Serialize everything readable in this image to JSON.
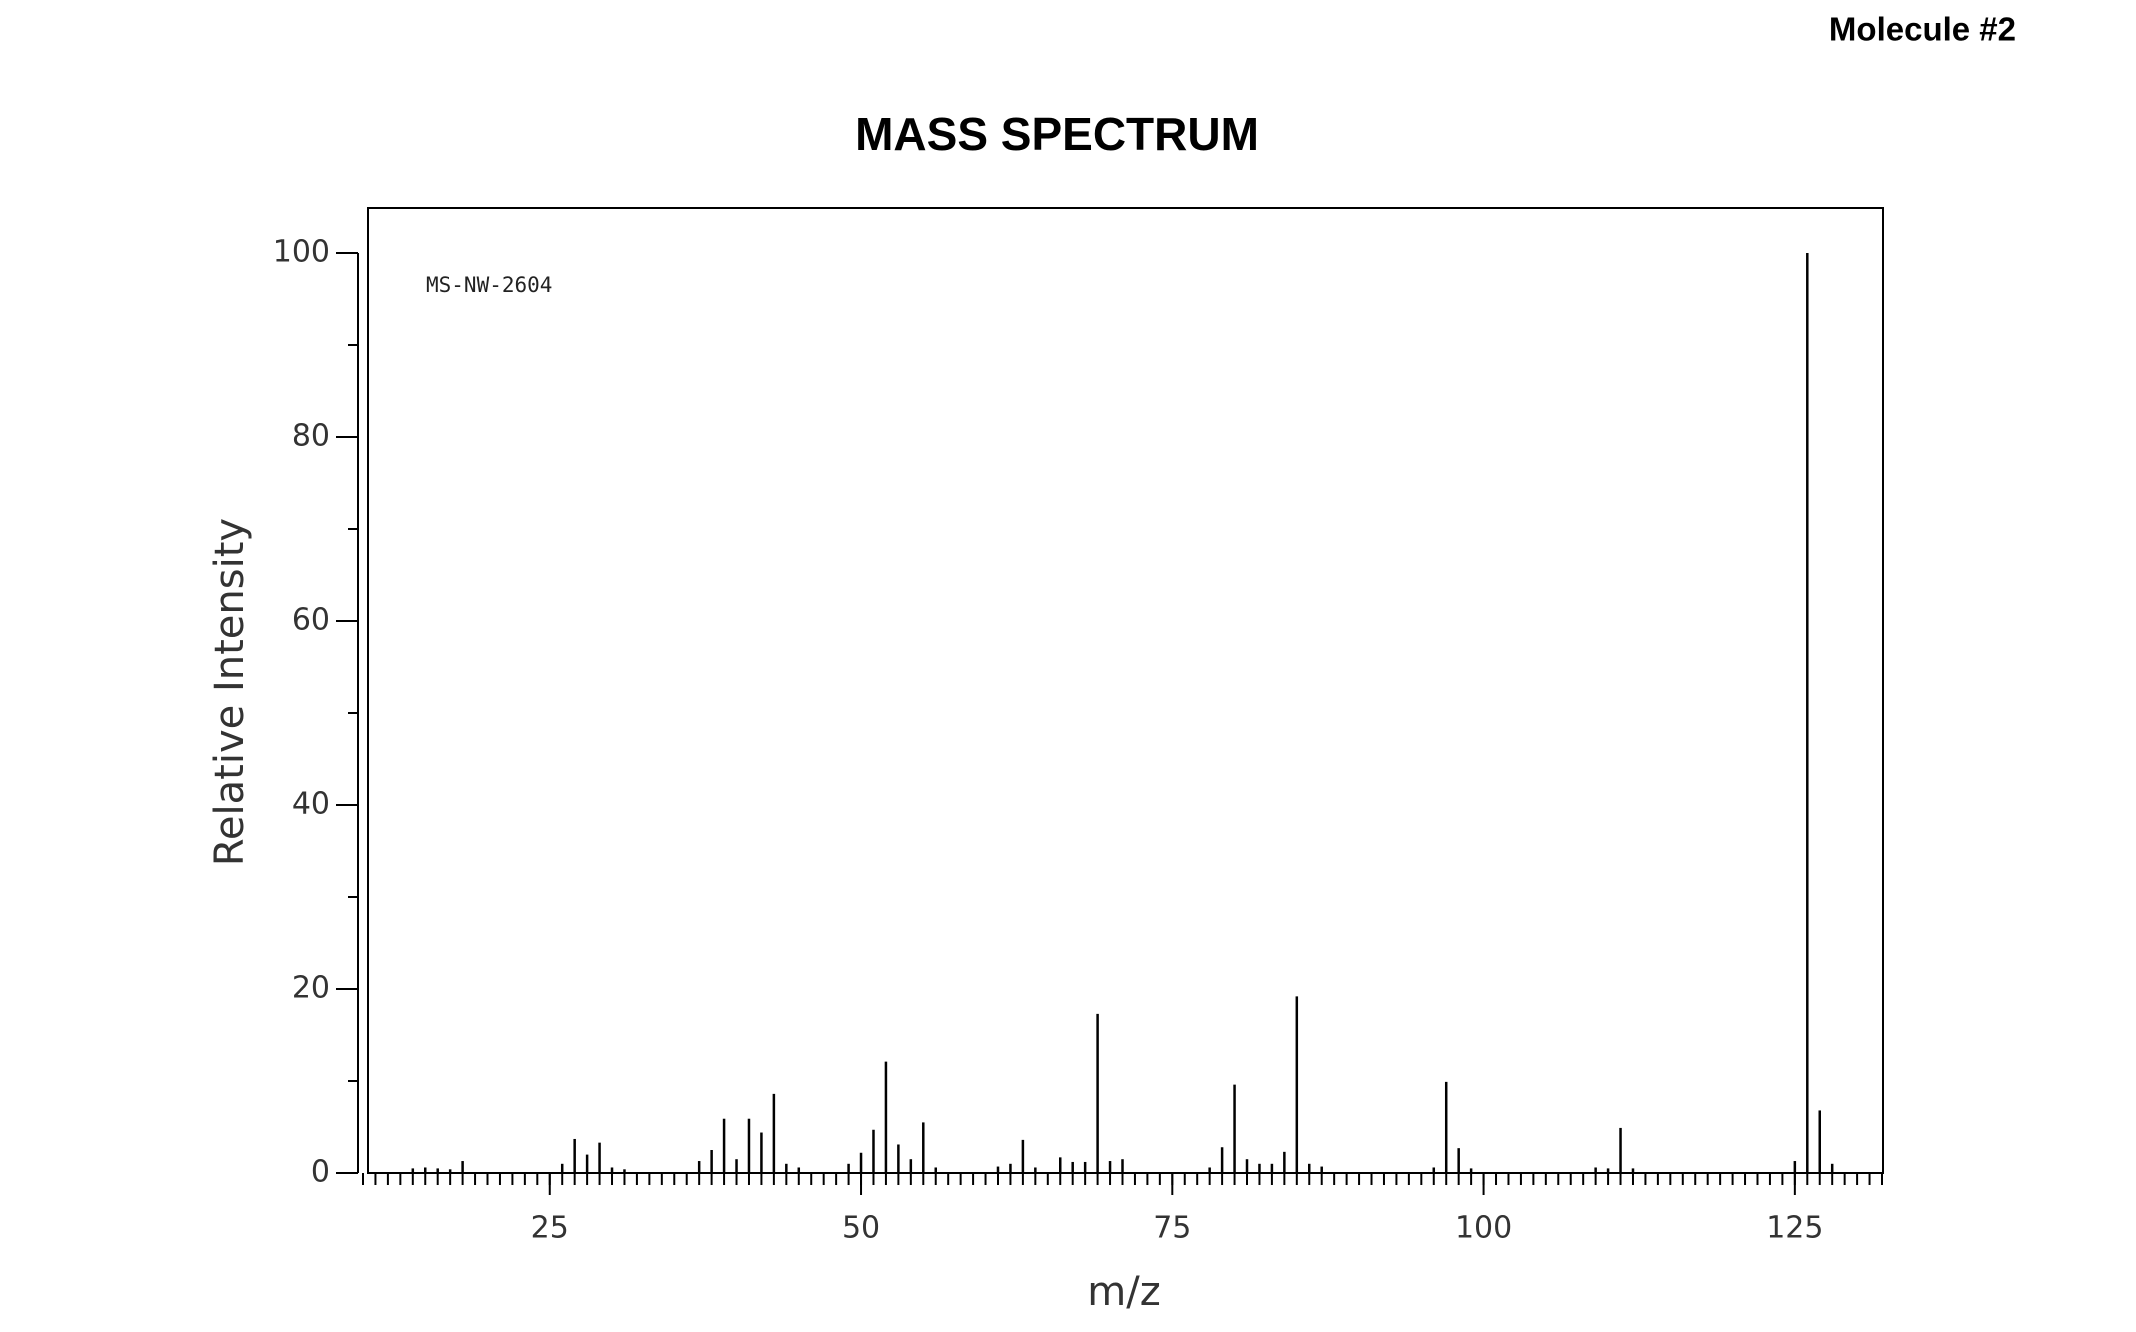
{
  "header": {
    "label": "Molecule #2"
  },
  "chart_data": {
    "type": "bar",
    "title": "MASS SPECTRUM",
    "annotation": "MS-NW-2604",
    "x_label": "m/z",
    "y_label": "Relative Intensity",
    "color": "#000000",
    "x": [
      14,
      15,
      16,
      17,
      18,
      26,
      27,
      28,
      29,
      30,
      31,
      37,
      38,
      39,
      40,
      41,
      42,
      43,
      44,
      45,
      49,
      50,
      51,
      52,
      53,
      54,
      55,
      56,
      61,
      62,
      63,
      64,
      66,
      67,
      68,
      69,
      70,
      71,
      78,
      79,
      80,
      81,
      82,
      83,
      84,
      85,
      86,
      87,
      96,
      97,
      98,
      99,
      109,
      110,
      111,
      112,
      125,
      126,
      127,
      128
    ],
    "values": [
      0.5,
      0.6,
      0.5,
      0.4,
      1.3,
      1.0,
      3.7,
      2.0,
      3.3,
      0.6,
      0.4,
      1.3,
      2.5,
      5.9,
      1.5,
      5.9,
      4.4,
      8.6,
      1.0,
      0.6,
      1.0,
      2.2,
      4.7,
      12.1,
      3.1,
      1.5,
      5.5,
      0.6,
      0.7,
      1.0,
      3.6,
      0.6,
      1.7,
      1.2,
      1.2,
      17.3,
      1.3,
      1.5,
      0.6,
      2.8,
      9.6,
      1.5,
      1.0,
      1.0,
      2.3,
      19.2,
      1.0,
      0.7,
      0.6,
      9.9,
      2.7,
      0.5,
      0.6,
      0.5,
      4.9,
      0.5,
      1.3,
      100,
      6.8,
      1.0
    ],
    "xlim": [
      10,
      132
    ],
    "ylim": [
      0,
      105
    ],
    "xticks": [
      25,
      50,
      75,
      100,
      125
    ],
    "yticks": [
      0,
      20,
      40,
      60,
      80,
      100
    ],
    "minor_xtick_step": 1,
    "minor_ytick_step": 10
  }
}
